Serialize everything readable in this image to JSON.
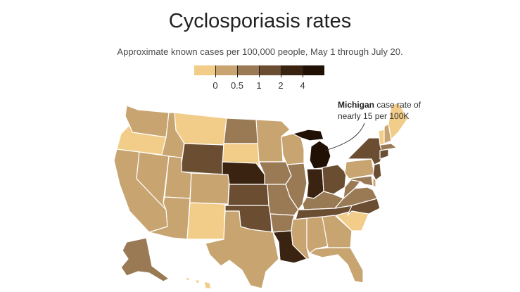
{
  "title": "Cyclosporiasis rates",
  "subtitle": "Approximate known cases per 100,000 people, May 1 through July 20.",
  "legend": {
    "ticks": [
      "0",
      "0.5",
      "1",
      "2",
      "4"
    ],
    "colors": [
      "#f2cd89",
      "#c8a471",
      "#9a7a55",
      "#6b4d31",
      "#3a2310",
      "#211105"
    ]
  },
  "annotation": {
    "state": "Michigan",
    "text": " case rate of nearly 15 per 100K"
  },
  "map_data": {
    "type": "choropleth",
    "levels": [
      "below 0",
      "0–0.5",
      "0.5–1",
      "1–2",
      "2–4",
      "above 4"
    ],
    "states": {
      "WA": 1,
      "OR": 0,
      "ID": 1,
      "MT": 0,
      "WY": 3,
      "CA": 1,
      "NV": 1,
      "UT": 1,
      "AZ": 1,
      "CO": 1,
      "NM": 0,
      "ND": 2,
      "SD": 0,
      "NE": 4,
      "KS": 3,
      "OK": 3,
      "TX": 1,
      "MN": 1,
      "IA": 2,
      "MO": 2,
      "AR": 2,
      "LA": 4,
      "WI": 1,
      "IL": 2,
      "MI": 5,
      "IN": 4,
      "OH": 3,
      "KY": 2,
      "TN": 3,
      "MS": 1,
      "AL": 1,
      "GA": 1,
      "FL": 1,
      "SC": 0,
      "NC": 3,
      "VA": 2,
      "WV": 2,
      "PA": 1,
      "NY": 3,
      "VT": 0,
      "NH": 1,
      "ME": 0,
      "MA": 2,
      "CT": 3,
      "NJ": 3,
      "DE": 1,
      "MD": 2,
      "AK": 2,
      "HI": 0
    }
  }
}
